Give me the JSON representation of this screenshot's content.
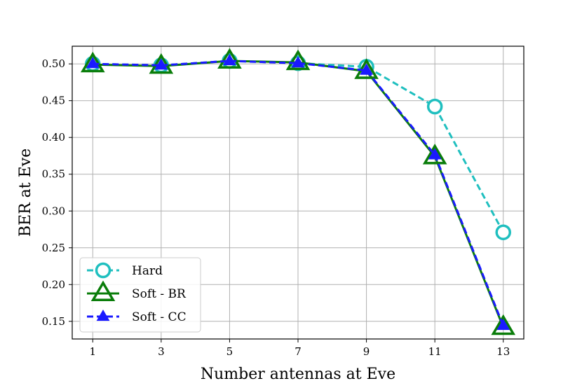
{
  "chart_data": {
    "type": "line",
    "xlabel": "Number antennas at Eve",
    "ylabel": "BER at Eve",
    "x": [
      1,
      3,
      5,
      7,
      9,
      11,
      13
    ],
    "xticks": [
      "1",
      "3",
      "5",
      "7",
      "9",
      "11",
      "13"
    ],
    "yticks": [
      "0.15",
      "0.20",
      "0.25",
      "0.30",
      "0.35",
      "0.40",
      "0.45",
      "0.50"
    ],
    "xlim": [
      0.4,
      13.6
    ],
    "ylim": [
      0.126,
      0.524
    ],
    "grid": true,
    "legend_position": "lower-left",
    "series": [
      {
        "name": "Hard",
        "color": "#1fbfbf",
        "line_style": "dashed",
        "marker": "circle-open",
        "values": [
          0.5,
          0.498,
          0.504,
          0.501,
          0.496,
          0.442,
          0.271
        ]
      },
      {
        "name": "Soft - BR",
        "color": "#0a7d0a",
        "line_style": "solid",
        "marker": "triangle-open",
        "values": [
          0.499,
          0.497,
          0.504,
          0.502,
          0.49,
          0.374,
          0.142
        ]
      },
      {
        "name": "Soft - CC",
        "color": "#1a1aff",
        "line_style": "dashed",
        "marker": "triangle-filled",
        "values": [
          0.5,
          0.498,
          0.504,
          0.501,
          0.491,
          0.376,
          0.144
        ]
      }
    ]
  }
}
